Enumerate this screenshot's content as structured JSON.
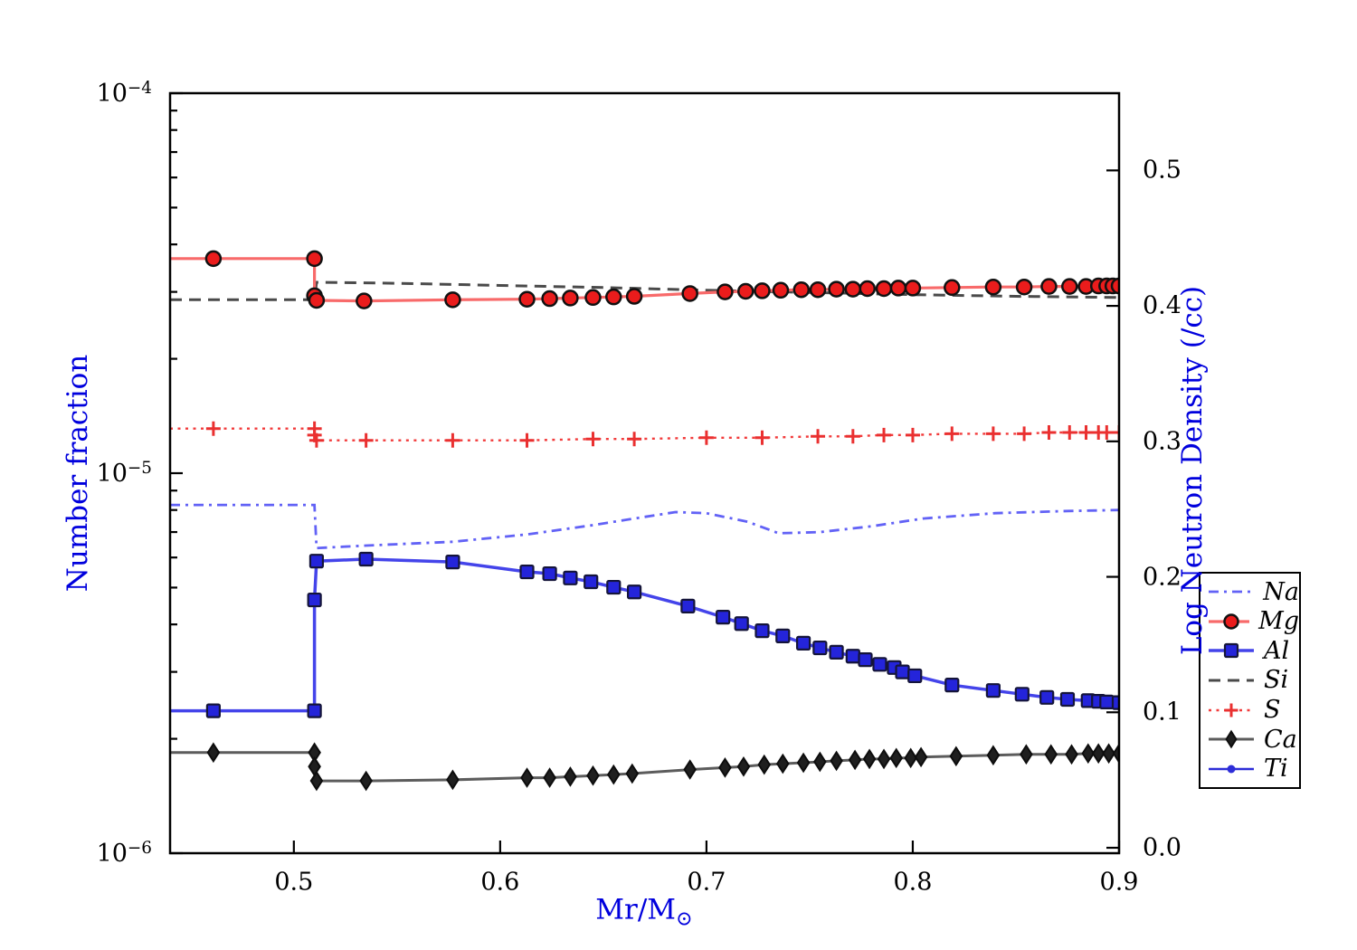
{
  "figure": {
    "background": "#ffffff"
  },
  "chart_data": {
    "type": "line",
    "title": "",
    "xlabel": "Mr/M⊙",
    "xlabel_main": "Mr/M",
    "xlabel_sub": "⊙",
    "ylabel_left": "Number fraction",
    "ylabel_right": "Log Neutron Density (/cc)",
    "axis_label_color": "#0000dd",
    "grid": false,
    "xlim": [
      0.44,
      0.9
    ],
    "x_ticks": [
      {
        "value": 0.5,
        "label": "0.5"
      },
      {
        "value": 0.6,
        "label": "0.6"
      },
      {
        "value": 0.7,
        "label": "0.7"
      },
      {
        "value": 0.8,
        "label": "0.8"
      },
      {
        "value": 0.9,
        "label": "0.9"
      }
    ],
    "y_left": {
      "scale": "log",
      "lim": [
        1e-06,
        0.0001
      ],
      "ticks": [
        {
          "value": 0.0001,
          "mant": "10",
          "exp": "−4"
        },
        {
          "value": 1e-05,
          "mant": "10",
          "exp": "−5"
        },
        {
          "value": 1e-06,
          "mant": "10",
          "exp": "−6"
        }
      ]
    },
    "y_right": {
      "scale": "linear",
      "lim": [
        -0.004,
        0.557
      ],
      "ticks": [
        {
          "value": 0.5,
          "label": "0.5"
        },
        {
          "value": 0.4,
          "label": "0.4"
        },
        {
          "value": 0.3,
          "label": "0.3"
        },
        {
          "value": 0.2,
          "label": "0.2"
        },
        {
          "value": 0.1,
          "label": "0.1"
        },
        {
          "value": 0.0,
          "label": "0.0"
        }
      ]
    },
    "legend": {
      "position": "outside-right",
      "entries": [
        "Na",
        "Mg",
        "Al",
        "Si",
        "S",
        "Ca",
        "Ti"
      ]
    },
    "series": [
      {
        "name": "Na",
        "color": "#6262f6",
        "line": "dashdot",
        "width": 2.8,
        "marker": "none",
        "zorder": 2,
        "points": [
          [
            0.44,
            8.25e-06,
            0
          ],
          [
            0.51,
            8.25e-06,
            0
          ],
          [
            0.511,
            6.35e-06,
            0
          ],
          [
            0.535,
            6.45e-06,
            0
          ],
          [
            0.577,
            6.6e-06,
            0
          ],
          [
            0.613,
            6.9e-06,
            0
          ],
          [
            0.645,
            7.3e-06,
            0
          ],
          [
            0.665,
            7.6e-06,
            0
          ],
          [
            0.685,
            7.9e-06,
            0
          ],
          [
            0.7,
            7.85e-06,
            0
          ],
          [
            0.72,
            7.45e-06,
            0
          ],
          [
            0.735,
            6.95e-06,
            0
          ],
          [
            0.755,
            7e-06,
            0
          ],
          [
            0.78,
            7.25e-06,
            0
          ],
          [
            0.805,
            7.6e-06,
            0
          ],
          [
            0.84,
            7.85e-06,
            0
          ],
          [
            0.875,
            7.95e-06,
            0
          ],
          [
            0.9,
            8e-06,
            0
          ]
        ]
      },
      {
        "name": "Mg",
        "color": "#f86a6a",
        "line": "solid",
        "width": 3.2,
        "marker": "circle",
        "marker_fill": "#ea1c1c",
        "marker_edge": "#111111",
        "marker_size": 16,
        "zorder": 5,
        "points": [
          [
            0.44,
            3.67e-05,
            0
          ],
          [
            0.461,
            3.67e-05,
            1
          ],
          [
            0.51,
            3.67e-05,
            1
          ],
          [
            0.51,
            2.93e-05,
            1
          ],
          [
            0.511,
            2.85e-05,
            1
          ],
          [
            0.534,
            2.84e-05,
            1
          ],
          [
            0.577,
            2.86e-05,
            1
          ],
          [
            0.613,
            2.87e-05,
            1
          ],
          [
            0.624,
            2.88e-05,
            1
          ],
          [
            0.634,
            2.89e-05,
            1
          ],
          [
            0.645,
            2.9e-05,
            1
          ],
          [
            0.655,
            2.91e-05,
            1
          ],
          [
            0.665,
            2.92e-05,
            1
          ],
          [
            0.692,
            2.97e-05,
            1
          ],
          [
            0.709,
            3e-05,
            1
          ],
          [
            0.719,
            3.01e-05,
            1
          ],
          [
            0.727,
            3.02e-05,
            1
          ],
          [
            0.736,
            3.03e-05,
            1
          ],
          [
            0.746,
            3.04e-05,
            1
          ],
          [
            0.754,
            3.04e-05,
            1
          ],
          [
            0.763,
            3.05e-05,
            1
          ],
          [
            0.771,
            3.05e-05,
            1
          ],
          [
            0.778,
            3.06e-05,
            1
          ],
          [
            0.786,
            3.06e-05,
            1
          ],
          [
            0.793,
            3.07e-05,
            1
          ],
          [
            0.8,
            3.07e-05,
            1
          ],
          [
            0.819,
            3.08e-05,
            1
          ],
          [
            0.839,
            3.09e-05,
            1
          ],
          [
            0.854,
            3.09e-05,
            1
          ],
          [
            0.866,
            3.1e-05,
            1
          ],
          [
            0.876,
            3.1e-05,
            1
          ],
          [
            0.884,
            3.1e-05,
            1
          ],
          [
            0.89,
            3.11e-05,
            1
          ],
          [
            0.894,
            3.11e-05,
            1
          ],
          [
            0.897,
            3.11e-05,
            1
          ],
          [
            0.9,
            3.11e-05,
            1
          ]
        ]
      },
      {
        "name": "Al",
        "color": "#4444ea",
        "line": "solid",
        "width": 3.5,
        "marker": "square",
        "marker_fill": "#2424da",
        "marker_edge": "#15153a",
        "marker_size": 14,
        "zorder": 6,
        "points": [
          [
            0.44,
            2.37e-06,
            0
          ],
          [
            0.461,
            2.37e-06,
            1
          ],
          [
            0.51,
            2.37e-06,
            1
          ],
          [
            0.51,
            4.64e-06,
            1
          ],
          [
            0.511,
            5.87e-06,
            1
          ],
          [
            0.535,
            5.94e-06,
            1
          ],
          [
            0.577,
            5.84e-06,
            1
          ],
          [
            0.613,
            5.5e-06,
            1
          ],
          [
            0.624,
            5.44e-06,
            1
          ],
          [
            0.634,
            5.3e-06,
            1
          ],
          [
            0.644,
            5.18e-06,
            1
          ],
          [
            0.655,
            5.01e-06,
            1
          ],
          [
            0.665,
            4.87e-06,
            1
          ],
          [
            0.691,
            4.47e-06,
            1
          ],
          [
            0.708,
            4.18e-06,
            1
          ],
          [
            0.717,
            4.02e-06,
            1
          ],
          [
            0.727,
            3.85e-06,
            1
          ],
          [
            0.737,
            3.73e-06,
            1
          ],
          [
            0.747,
            3.57e-06,
            1
          ],
          [
            0.755,
            3.47e-06,
            1
          ],
          [
            0.763,
            3.38e-06,
            1
          ],
          [
            0.771,
            3.3e-06,
            1
          ],
          [
            0.777,
            3.23e-06,
            1
          ],
          [
            0.784,
            3.14e-06,
            1
          ],
          [
            0.791,
            3.08e-06,
            1
          ],
          [
            0.795,
            3e-06,
            1
          ],
          [
            0.801,
            2.93e-06,
            1
          ],
          [
            0.819,
            2.77e-06,
            1
          ],
          [
            0.839,
            2.68e-06,
            1
          ],
          [
            0.853,
            2.62e-06,
            1
          ],
          [
            0.865,
            2.57e-06,
            1
          ],
          [
            0.875,
            2.54e-06,
            1
          ],
          [
            0.885,
            2.52e-06,
            1
          ],
          [
            0.89,
            2.51e-06,
            1
          ],
          [
            0.894,
            2.5e-06,
            1
          ],
          [
            0.9,
            2.49e-06,
            1
          ]
        ]
      },
      {
        "name": "Si",
        "color": "#4a4a4a",
        "line": "dashed",
        "width": 3,
        "marker": "none",
        "zorder": 1,
        "points": [
          [
            0.44,
            2.86e-05,
            0
          ],
          [
            0.51,
            2.86e-05,
            0
          ],
          [
            0.511,
            3.18e-05,
            0
          ],
          [
            0.55,
            3.16e-05,
            0
          ],
          [
            0.6,
            3.12e-05,
            0
          ],
          [
            0.65,
            3.08e-05,
            0
          ],
          [
            0.7,
            3.03e-05,
            0
          ],
          [
            0.75,
            2.99e-05,
            0
          ],
          [
            0.8,
            2.95e-05,
            0
          ],
          [
            0.85,
            2.92e-05,
            0
          ],
          [
            0.9,
            2.9e-05,
            0
          ]
        ]
      },
      {
        "name": "S",
        "color": "#f23b3b",
        "line": "dotted",
        "width": 2.4,
        "marker": "plus",
        "marker_edge": "#ea3030",
        "marker_size": 16,
        "zorder": 3,
        "points": [
          [
            0.44,
            1.31e-05,
            0
          ],
          [
            0.461,
            1.31e-05,
            1
          ],
          [
            0.51,
            1.31e-05,
            1
          ],
          [
            0.51,
            1.26e-05,
            1
          ],
          [
            0.511,
            1.22e-05,
            1
          ],
          [
            0.535,
            1.22e-05,
            1
          ],
          [
            0.577,
            1.22e-05,
            1
          ],
          [
            0.613,
            1.22e-05,
            1
          ],
          [
            0.645,
            1.23e-05,
            1
          ],
          [
            0.665,
            1.23e-05,
            1
          ],
          [
            0.7,
            1.24e-05,
            1
          ],
          [
            0.727,
            1.24e-05,
            1
          ],
          [
            0.754,
            1.25e-05,
            1
          ],
          [
            0.771,
            1.25e-05,
            1
          ],
          [
            0.786,
            1.26e-05,
            1
          ],
          [
            0.8,
            1.26e-05,
            1
          ],
          [
            0.819,
            1.27e-05,
            1
          ],
          [
            0.839,
            1.27e-05,
            1
          ],
          [
            0.854,
            1.27e-05,
            1
          ],
          [
            0.866,
            1.28e-05,
            1
          ],
          [
            0.876,
            1.28e-05,
            1
          ],
          [
            0.884,
            1.28e-05,
            1
          ],
          [
            0.89,
            1.28e-05,
            1
          ],
          [
            0.894,
            1.28e-05,
            1
          ],
          [
            0.9,
            1.28e-05,
            1
          ]
        ]
      },
      {
        "name": "Ca",
        "color": "#5c5c5c",
        "line": "solid",
        "width": 3,
        "marker": "diamond",
        "marker_fill": "#1f1f1f",
        "marker_edge": "#0d0d0d",
        "marker_size": 17,
        "zorder": 7,
        "points": [
          [
            0.44,
            1.84e-06,
            0
          ],
          [
            0.461,
            1.84e-06,
            1
          ],
          [
            0.51,
            1.84e-06,
            1
          ],
          [
            0.51,
            1.69e-06,
            1
          ],
          [
            0.511,
            1.55e-06,
            1
          ],
          [
            0.535,
            1.55e-06,
            1
          ],
          [
            0.577,
            1.56e-06,
            1
          ],
          [
            0.613,
            1.58e-06,
            1
          ],
          [
            0.624,
            1.58e-06,
            1
          ],
          [
            0.634,
            1.59e-06,
            1
          ],
          [
            0.645,
            1.6e-06,
            1
          ],
          [
            0.655,
            1.61e-06,
            1
          ],
          [
            0.664,
            1.62e-06,
            1
          ],
          [
            0.692,
            1.66e-06,
            1
          ],
          [
            0.709,
            1.68e-06,
            1
          ],
          [
            0.718,
            1.69e-06,
            1
          ],
          [
            0.728,
            1.71e-06,
            1
          ],
          [
            0.737,
            1.72e-06,
            1
          ],
          [
            0.747,
            1.73e-06,
            1
          ],
          [
            0.755,
            1.74e-06,
            1
          ],
          [
            0.763,
            1.75e-06,
            1
          ],
          [
            0.772,
            1.76e-06,
            1
          ],
          [
            0.779,
            1.77e-06,
            1
          ],
          [
            0.786,
            1.77e-06,
            1
          ],
          [
            0.792,
            1.78e-06,
            1
          ],
          [
            0.799,
            1.78e-06,
            1
          ],
          [
            0.804,
            1.79e-06,
            1
          ],
          [
            0.821,
            1.8e-06,
            1
          ],
          [
            0.839,
            1.81e-06,
            1
          ],
          [
            0.855,
            1.82e-06,
            1
          ],
          [
            0.867,
            1.82e-06,
            1
          ],
          [
            0.877,
            1.82e-06,
            1
          ],
          [
            0.885,
            1.83e-06,
            1
          ],
          [
            0.89,
            1.83e-06,
            1
          ],
          [
            0.895,
            1.83e-06,
            1
          ],
          [
            0.9,
            1.83e-06,
            1
          ]
        ]
      },
      {
        "name": "Ti",
        "color": "#2d2dd8",
        "line": "solid",
        "width": 2.5,
        "marker": "dot",
        "marker_fill": "#2d2dd8",
        "marker_edge": "#2d2dd8",
        "marker_size": 9,
        "zorder": 4,
        "points": []
      }
    ]
  }
}
